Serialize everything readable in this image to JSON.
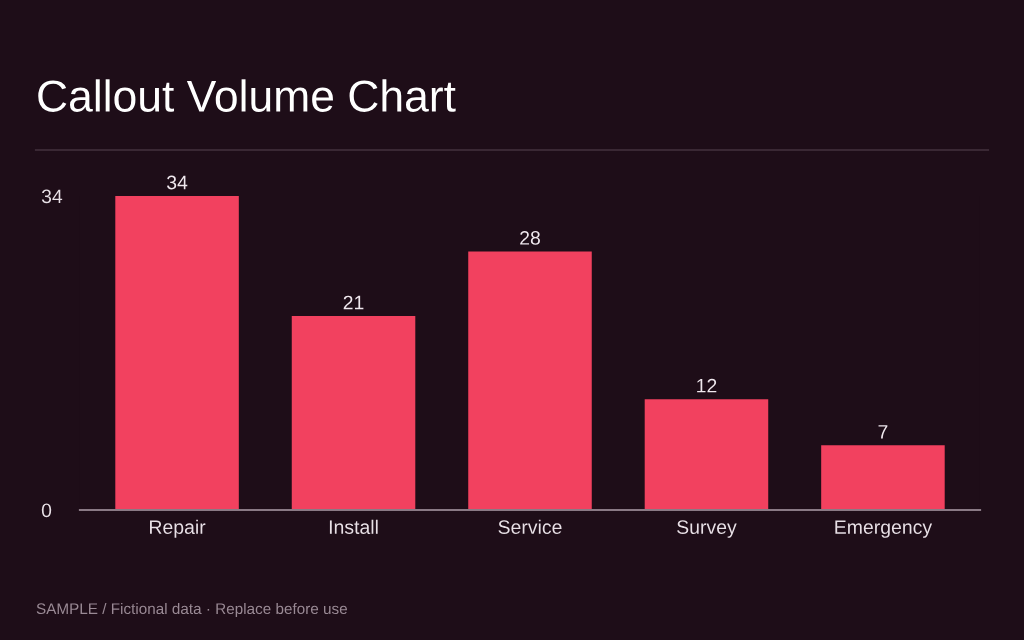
{
  "chart_data": {
    "type": "bar",
    "title": "Callout Volume Chart",
    "categories": [
      "Repair",
      "Install",
      "Service",
      "Survey",
      "Emergency"
    ],
    "values": [
      34,
      21,
      28,
      12,
      7
    ],
    "color": "#f2415f",
    "ylim": [
      0,
      34
    ],
    "yticks": [
      0,
      34
    ],
    "grid": false,
    "data_labels": true,
    "annotations": [
      "SAMPLE / Fictional data · Replace before use"
    ]
  }
}
